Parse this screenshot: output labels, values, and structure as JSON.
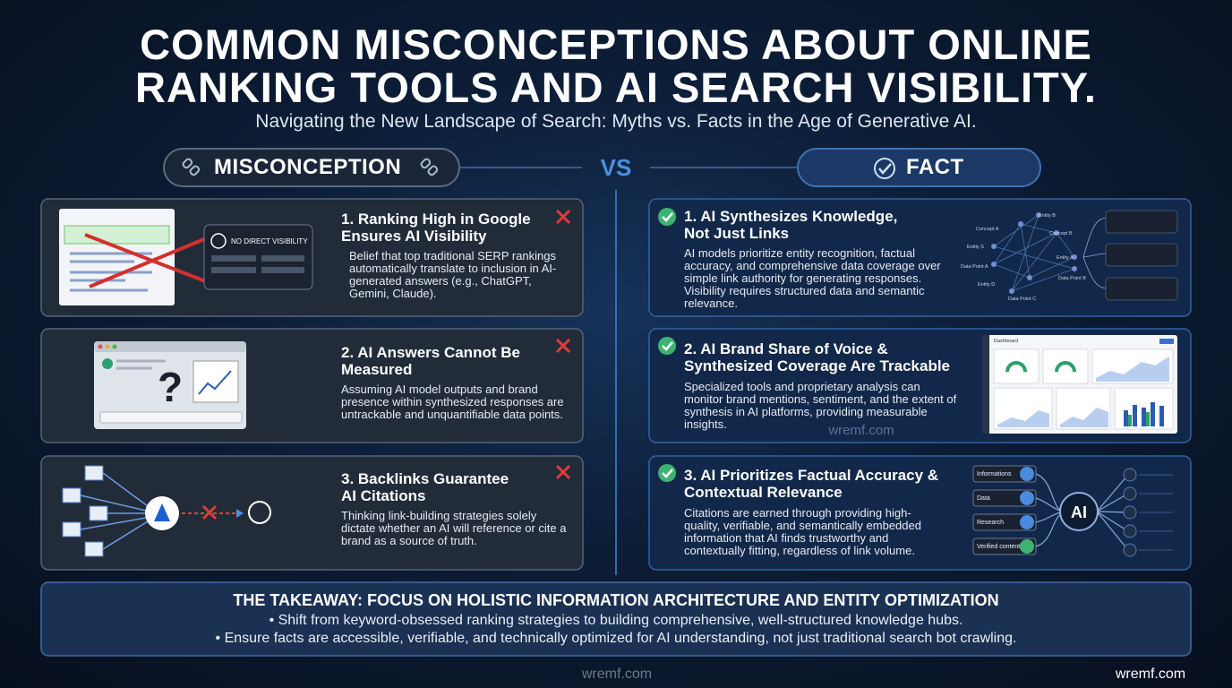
{
  "header": {
    "title": "COMMON MISCONCEPTIONS ABOUT ONLINE RANKING TOOLS AND AI SEARCH VISIBILITY.",
    "subtitle": "Navigating the New Landscape of Search: Myths vs. Facts in the Age of Generative AI."
  },
  "columns": {
    "misconception": "MISCONCEPTION",
    "vs": "VS",
    "fact": "FACT"
  },
  "misconceptions": [
    {
      "title": "1. Ranking High in Google Ensures AI Visibility",
      "text": "Belief that top traditional SERP rankings automatically translate to inclusion in AI-generated answers (e.g., ChatGPT, Gemini, Claude).",
      "badge": "NO DIRECT VISIBILITY"
    },
    {
      "title": "2. AI Answers Cannot Be Measured",
      "text": "Assuming AI model outputs and brand presence within synthesized responses are untrackable and unquantifiable data points.",
      "symbol": "?"
    },
    {
      "title": "3. Backlinks Guarantee AI Citations",
      "text": "Thinking link-building strategies solely dictate whether an AI will reference or cite a brand as a source of truth."
    }
  ],
  "facts": [
    {
      "title": "1. AI Synthesizes Knowledge, Not Just Links",
      "text": "AI models prioritize entity recognition, factual accuracy, and comprehensive data coverage over simple link authority for generating responses. Visibility requires structured data and semantic relevance.",
      "nodes": [
        "Entity B",
        "Concept A",
        "Concept B",
        "Entity S",
        "Entity A",
        "Data Point A",
        "Data Point B",
        "Entity D",
        "Data Point C"
      ]
    },
    {
      "title": "2. AI Brand Share of Voice & Synthesized Coverage Are Trackable",
      "text": "Specialized tools and proprietary analysis can monitor brand mentions, sentiment, and the extent of synthesis in AI platforms, providing measurable insights.",
      "dashboard": "Dashboard"
    },
    {
      "title": "3. AI Prioritizes Factual Accuracy & Contextual Relevance",
      "text": "Citations are earned through providing high-quality, verifiable, and semantically embedded information that AI finds trustworthy and contextually fitting, regardless of link volume.",
      "inputs": [
        "Informations",
        "Data",
        "Research",
        "Verified content"
      ],
      "hub": "AI"
    }
  ],
  "takeaway": {
    "title": "THE TAKEAWAY: FOCUS ON HOLISTIC INFORMATION ARCHITECTURE AND ENTITY OPTIMIZATION",
    "bullets": [
      "• Shift from keyword-obsessed ranking strategies to building comprehensive, well-structured knowledge hubs.",
      "• Ensure facts are accessible, verifiable, and technically optimized for AI understanding, not just traditional search bot crawling."
    ]
  },
  "watermarks": [
    "wremf.com",
    "wremf.com",
    "wremf.com"
  ]
}
